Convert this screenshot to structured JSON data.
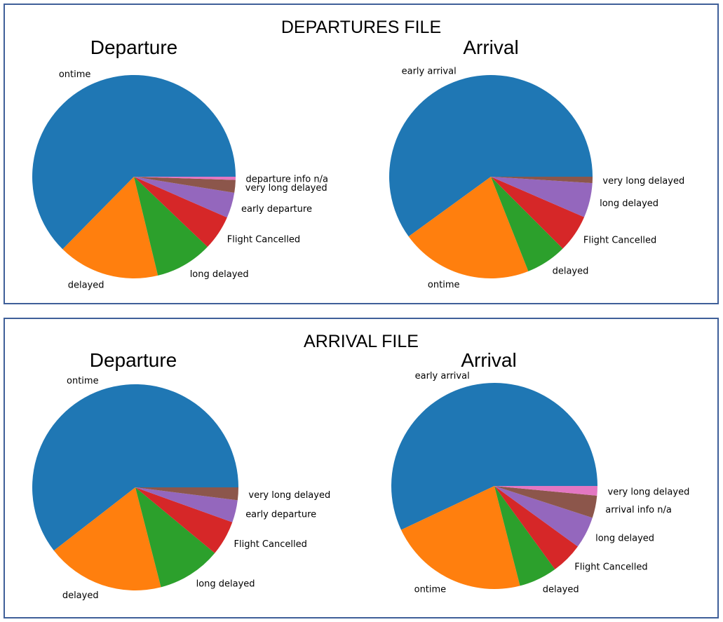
{
  "panels": [
    {
      "title": "DEPARTURES FILE",
      "charts": [
        {
          "type": "pie",
          "title": "Departure",
          "slices": [
            {
              "label": "ontime",
              "value": 62.0,
              "color": "#1f77b4"
            },
            {
              "label": "delayed",
              "value": 16.0,
              "color": "#ff7f0e"
            },
            {
              "label": "long delayed",
              "value": 9.0,
              "color": "#2ca02c"
            },
            {
              "label": "Flight Cancelled",
              "value": 5.5,
              "color": "#d62728"
            },
            {
              "label": "early departure",
              "value": 4.0,
              "color": "#9467bd"
            },
            {
              "label": "very long delayed",
              "value": 2.0,
              "color": "#8c564b"
            },
            {
              "label": "departure info n/a",
              "value": 0.5,
              "color": "#e377c2"
            }
          ]
        },
        {
          "type": "pie",
          "title": "Arrival",
          "slices": [
            {
              "label": "early arrival",
              "value": 60.0,
              "color": "#1f77b4"
            },
            {
              "label": "ontime",
              "value": 21.0,
              "color": "#ff7f0e"
            },
            {
              "label": "delayed",
              "value": 6.5,
              "color": "#2ca02c"
            },
            {
              "label": "Flight Cancelled",
              "value": 6.0,
              "color": "#d62728"
            },
            {
              "label": "long delayed",
              "value": 5.5,
              "color": "#9467bd"
            },
            {
              "label": "very long delayed",
              "value": 1.0,
              "color": "#8c564b"
            }
          ]
        }
      ]
    },
    {
      "title": "ARRIVAL FILE",
      "charts": [
        {
          "type": "pie",
          "title": "Departure",
          "slices": [
            {
              "label": "ontime",
              "value": 60.5,
              "color": "#1f77b4"
            },
            {
              "label": "delayed",
              "value": 18.5,
              "color": "#ff7f0e"
            },
            {
              "label": "long delayed",
              "value": 10.0,
              "color": "#2ca02c"
            },
            {
              "label": "Flight Cancelled",
              "value": 5.5,
              "color": "#d62728"
            },
            {
              "label": "early departure",
              "value": 3.5,
              "color": "#9467bd"
            },
            {
              "label": "very long delayed",
              "value": 2.0,
              "color": "#8c564b"
            }
          ]
        },
        {
          "type": "pie",
          "title": "Arrival",
          "slices": [
            {
              "label": "early arrival",
              "value": 57.0,
              "color": "#1f77b4"
            },
            {
              "label": "ontime",
              "value": 22.0,
              "color": "#ff7f0e"
            },
            {
              "label": "delayed",
              "value": 6.0,
              "color": "#2ca02c"
            },
            {
              "label": "Flight Cancelled",
              "value": 5.0,
              "color": "#d62728"
            },
            {
              "label": "long delayed",
              "value": 5.0,
              "color": "#9467bd"
            },
            {
              "label": "arrival info n/a",
              "value": 3.5,
              "color": "#8c564b"
            },
            {
              "label": "very long delayed",
              "value": 1.5,
              "color": "#e377c2"
            }
          ]
        }
      ]
    }
  ],
  "chart_data": [
    {
      "type": "pie",
      "title": "Departure",
      "categories": [
        "ontime",
        "delayed",
        "long delayed",
        "Flight Cancelled",
        "early departure",
        "very long delayed",
        "departure info n/a"
      ],
      "values": [
        62.0,
        16.0,
        9.0,
        5.5,
        4.0,
        2.0,
        0.5
      ]
    },
    {
      "type": "pie",
      "title": "Arrival",
      "categories": [
        "early arrival",
        "ontime",
        "delayed",
        "Flight Cancelled",
        "long delayed",
        "very long delayed"
      ],
      "values": [
        60.0,
        21.0,
        6.5,
        6.0,
        5.5,
        1.0
      ]
    },
    {
      "type": "pie",
      "title": "Departure",
      "categories": [
        "ontime",
        "delayed",
        "long delayed",
        "Flight Cancelled",
        "early departure",
        "very long delayed"
      ],
      "values": [
        60.5,
        18.5,
        10.0,
        5.5,
        3.5,
        2.0
      ]
    },
    {
      "type": "pie",
      "title": "Arrival",
      "categories": [
        "early arrival",
        "ontime",
        "delayed",
        "Flight Cancelled",
        "long delayed",
        "arrival info n/a",
        "very long delayed"
      ],
      "values": [
        57.0,
        22.0,
        6.0,
        5.0,
        5.0,
        3.5,
        1.5
      ]
    }
  ]
}
